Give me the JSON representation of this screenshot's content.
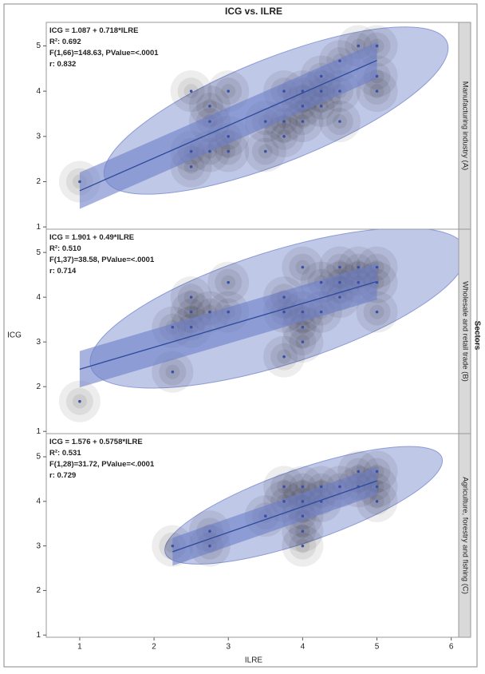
{
  "chart_data": {
    "type": "scatter",
    "title": "ICG vs. ILRE",
    "x_label": "ILRE",
    "y_label": "ICG",
    "facet_label": "Sectors",
    "xlim": [
      0.55,
      6.1
    ],
    "xticks": [
      1,
      2,
      3,
      4,
      5,
      6
    ],
    "ylim": [
      0.95,
      5.52
    ],
    "yticks": [
      1,
      2,
      3,
      4,
      5
    ],
    "point_color": "#3b4fa8",
    "line_color": "#2d4a9a",
    "ellipse_color": "#8c9bd6",
    "panels": [
      {
        "name": "Manufacturing industry (A)",
        "annotations": [
          "ICG = 1.087 + 0.718*ILRE",
          "R²: 0.692",
          "F(1,66)=148.63, PValue=<.0001",
          "r: 0.832"
        ],
        "x": [
          1,
          2.5,
          2.75,
          3,
          2.5,
          2.5,
          2.75,
          3,
          2.75,
          3,
          3.5,
          3.75,
          3.75,
          4,
          4,
          4,
          3.75,
          4.25,
          4.25,
          4.5,
          4.5,
          4.5,
          4.75,
          5,
          5,
          5,
          4.25,
          3.5
        ],
        "y": [
          2,
          4,
          3.67,
          4,
          2.33,
          2.67,
          2.67,
          2.67,
          3.33,
          3,
          3.33,
          3.33,
          3,
          4,
          3.67,
          3.33,
          4,
          4,
          4.33,
          4,
          3.33,
          4.67,
          5,
          5,
          4.33,
          4,
          3.67,
          2.67
        ],
        "fit_line": {
          "x": [
            1,
            5
          ],
          "y": [
            1.8,
            4.68
          ]
        }
      },
      {
        "name": "Wholesale and retail trade (B)",
        "annotations": [
          "ICG = 1.901 + 0.49*ILRE",
          "R²: 0.510",
          "F(1,37)=38.58, PValue=<.0001",
          "r: 0.714"
        ],
        "x": [
          1,
          2.25,
          2.25,
          2.5,
          2.5,
          2.5,
          2.75,
          3,
          3,
          3.75,
          3.75,
          3.75,
          4,
          4,
          4,
          4.25,
          4.5,
          4.5,
          4.5,
          4.75,
          4.75,
          5,
          5,
          5,
          4.25,
          4
        ],
        "y": [
          1.67,
          2.33,
          3.33,
          4,
          3.33,
          3.67,
          3.67,
          3.67,
          4.33,
          4,
          2.67,
          3.67,
          3.33,
          4.67,
          3,
          3.67,
          4,
          4.33,
          4.67,
          4.67,
          4.33,
          4.67,
          4.33,
          3.67,
          4.33,
          3.67
        ],
        "fit_line": {
          "x": [
            1,
            5
          ],
          "y": [
            2.39,
            4.35
          ]
        }
      },
      {
        "name": "Agriculture, forestry and fishing (C)",
        "annotations": [
          "ICG = 1.576 + 0.5758*ILRE",
          "R²: 0.531",
          "F(1,28)=31.72, PValue=<.0001",
          "r: 0.729"
        ],
        "x": [
          2.25,
          2.75,
          2.75,
          3.5,
          3.75,
          3.75,
          4,
          4,
          4,
          4,
          4,
          4.25,
          4.25,
          4.75,
          4.75,
          5,
          5,
          5,
          4.5
        ],
        "y": [
          3,
          3.33,
          3,
          3.67,
          4,
          4.33,
          4.33,
          3.67,
          3.33,
          3,
          4,
          4.33,
          4,
          4.67,
          4.33,
          4.67,
          4.33,
          4,
          4.33
        ],
        "fit_line": {
          "x": [
            2.25,
            5
          ],
          "y": [
            2.87,
            4.46
          ]
        }
      }
    ]
  }
}
